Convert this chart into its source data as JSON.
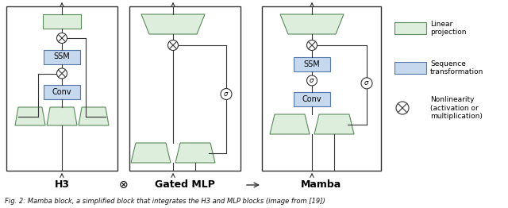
{
  "bg_color": "#ffffff",
  "green_fill": "#ddeedd",
  "green_border": "#5b8a5b",
  "blue_fill": "#c5d8ee",
  "blue_border": "#5577aa",
  "dark": "#333333",
  "caption": "Fig. 2: Mamba block, a simplified block that integrates the H3 and MLP blocks (image from [19])",
  "label_h3": "H3",
  "label_gated": "Gated MLP",
  "label_mamba": "Mamba",
  "legend_linear": "Linear\nprojection",
  "legend_seq": "Sequence\ntransformation",
  "legend_nonlin": "Nonlinearity\n(activation or\nmultiplication)"
}
